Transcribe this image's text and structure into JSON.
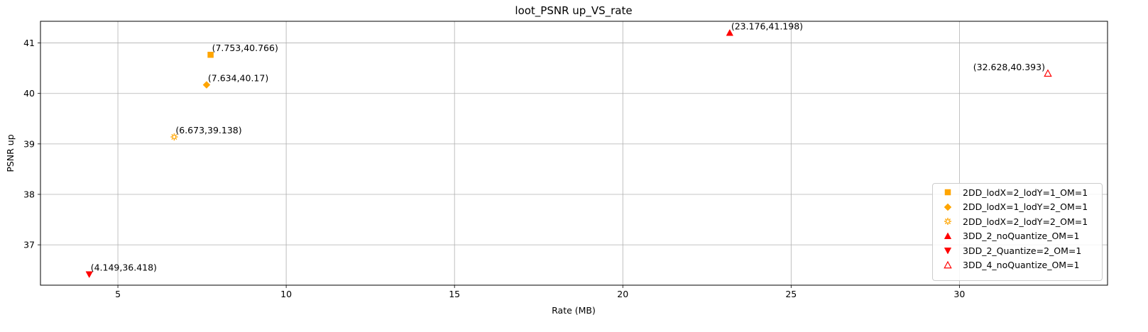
{
  "chart_data": {
    "type": "scatter",
    "title": "loot_PSNR up_VS_rate",
    "xlabel": "Rate (MB)",
    "ylabel": "PSNR up",
    "xlim": [
      2.7,
      34.4
    ],
    "ylim": [
      36.2,
      41.43
    ],
    "xticks": [
      5,
      10,
      15,
      20,
      25,
      30
    ],
    "yticks": [
      37,
      38,
      39,
      40,
      41
    ],
    "grid": true,
    "legend_position": "lower-right",
    "series": [
      {
        "name": "2DD_lodX=2_lodY=1_OM=1",
        "marker": "square",
        "color": "#FFA500",
        "filled": true,
        "points": [
          {
            "x": 7.753,
            "y": 40.766,
            "label": "(7.753,40.766)"
          }
        ]
      },
      {
        "name": "2DD_lodX=1_lodY=2_OM=1",
        "marker": "diamond",
        "color": "#FFA500",
        "filled": true,
        "points": [
          {
            "x": 7.634,
            "y": 40.17,
            "label": "(7.634,40.17)"
          }
        ]
      },
      {
        "name": "2DD_lodX=2_lodY=2_OM=1",
        "marker": "star",
        "color": "#FFA500",
        "filled": false,
        "points": [
          {
            "x": 6.673,
            "y": 39.138,
            "label": "(6.673,39.138)"
          }
        ]
      },
      {
        "name": "3DD_2_noQuantize_OM=1",
        "marker": "triangle-up",
        "color": "#FF0000",
        "filled": true,
        "points": [
          {
            "x": 23.176,
            "y": 41.198,
            "label": "(23.176,41.198)"
          }
        ]
      },
      {
        "name": "3DD_2_Quantize=2_OM=1",
        "marker": "triangle-down",
        "color": "#FF0000",
        "filled": true,
        "points": [
          {
            "x": 4.149,
            "y": 36.418,
            "label": "(4.149,36.418)"
          }
        ]
      },
      {
        "name": "3DD_4_noQuantize_OM=1",
        "marker": "triangle-up",
        "color": "#FF0000",
        "filled": false,
        "points": [
          {
            "x": 32.628,
            "y": 40.393,
            "label": "(32.628,40.393)"
          }
        ]
      }
    ]
  }
}
